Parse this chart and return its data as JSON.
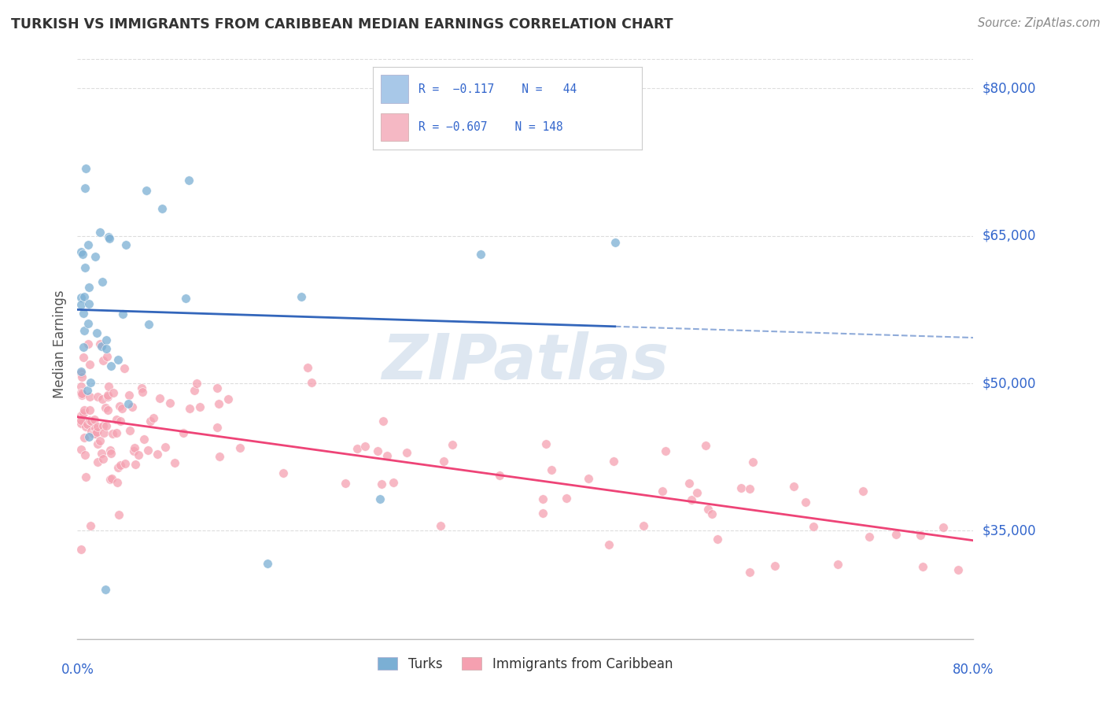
{
  "title": "TURKISH VS IMMIGRANTS FROM CARIBBEAN MEDIAN EARNINGS CORRELATION CHART",
  "source": "Source: ZipAtlas.com",
  "ylabel": "Median Earnings",
  "ytick_labels": [
    "$35,000",
    "$50,000",
    "$65,000",
    "$80,000"
  ],
  "ytick_values": [
    35000,
    50000,
    65000,
    80000
  ],
  "xmin": 0.0,
  "xmax": 80.0,
  "ymin": 24000,
  "ymax": 84000,
  "turks_R": -0.117,
  "turks_N": 44,
  "carib_R": -0.607,
  "carib_N": 148,
  "blue_color": "#7BAFD4",
  "pink_color": "#F5A0B0",
  "trend_blue": "#3366BB",
  "trend_pink": "#EE4477",
  "legend_blue_fill": "#A8C8E8",
  "legend_pink_fill": "#F5B8C4",
  "watermark_color": "#C8D8E8",
  "title_color": "#333333",
  "source_color": "#888888",
  "label_color": "#3366CC",
  "ylabel_color": "#555555",
  "grid_color": "#DDDDDD",
  "spine_color": "#BBBBBB"
}
